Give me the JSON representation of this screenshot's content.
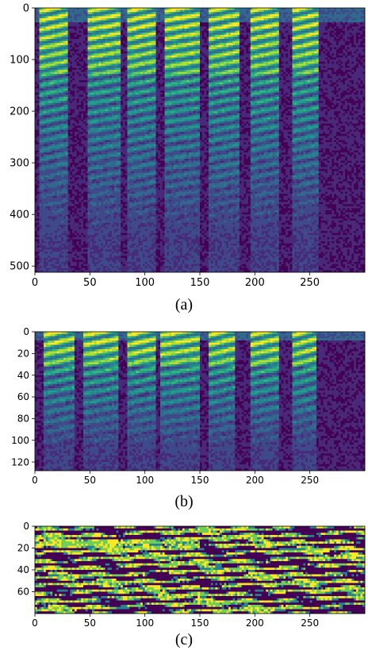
{
  "colors": {
    "colormap": [
      "#440154",
      "#482878",
      "#3e4989",
      "#31688e",
      "#26828e",
      "#1f9e89",
      "#35b779",
      "#6ece58",
      "#b5de2b",
      "#fde725"
    ],
    "axis": "#000000"
  },
  "chart_data": [
    {
      "type": "heatmap",
      "caption": "(a)",
      "x_ticks": [
        0,
        50,
        100,
        150,
        200,
        250
      ],
      "y_ticks": [
        0,
        100,
        200,
        300,
        400,
        500
      ],
      "xlim": [
        0,
        300
      ],
      "ylim": [
        512,
        0
      ],
      "colormap": "viridis",
      "segments": [
        [
          5,
          30
        ],
        [
          48,
          78
        ],
        [
          85,
          110
        ],
        [
          118,
          150
        ],
        [
          158,
          185
        ],
        [
          196,
          222
        ],
        [
          233,
          257
        ]
      ],
      "pattern": "harmonic"
    },
    {
      "type": "heatmap",
      "caption": "(b)",
      "x_ticks": [
        0,
        50,
        100,
        150,
        200,
        250
      ],
      "y_ticks": [
        0,
        20,
        40,
        60,
        80,
        100,
        120
      ],
      "xlim": [
        0,
        300
      ],
      "ylim": [
        128,
        0
      ],
      "colormap": "viridis",
      "segments": [
        [
          8,
          35
        ],
        [
          45,
          75
        ],
        [
          84,
          110
        ],
        [
          115,
          150
        ],
        [
          158,
          182
        ],
        [
          196,
          222
        ],
        [
          235,
          256
        ]
      ],
      "pattern": "harmonic"
    },
    {
      "type": "heatmap",
      "caption": "(c)",
      "x_ticks": [
        0,
        50,
        100,
        150,
        200,
        250
      ],
      "y_ticks": [
        0,
        20,
        40,
        60
      ],
      "xlim": [
        0,
        300
      ],
      "ylim": [
        80,
        0
      ],
      "colormap": "viridis",
      "pattern": "binary"
    }
  ]
}
